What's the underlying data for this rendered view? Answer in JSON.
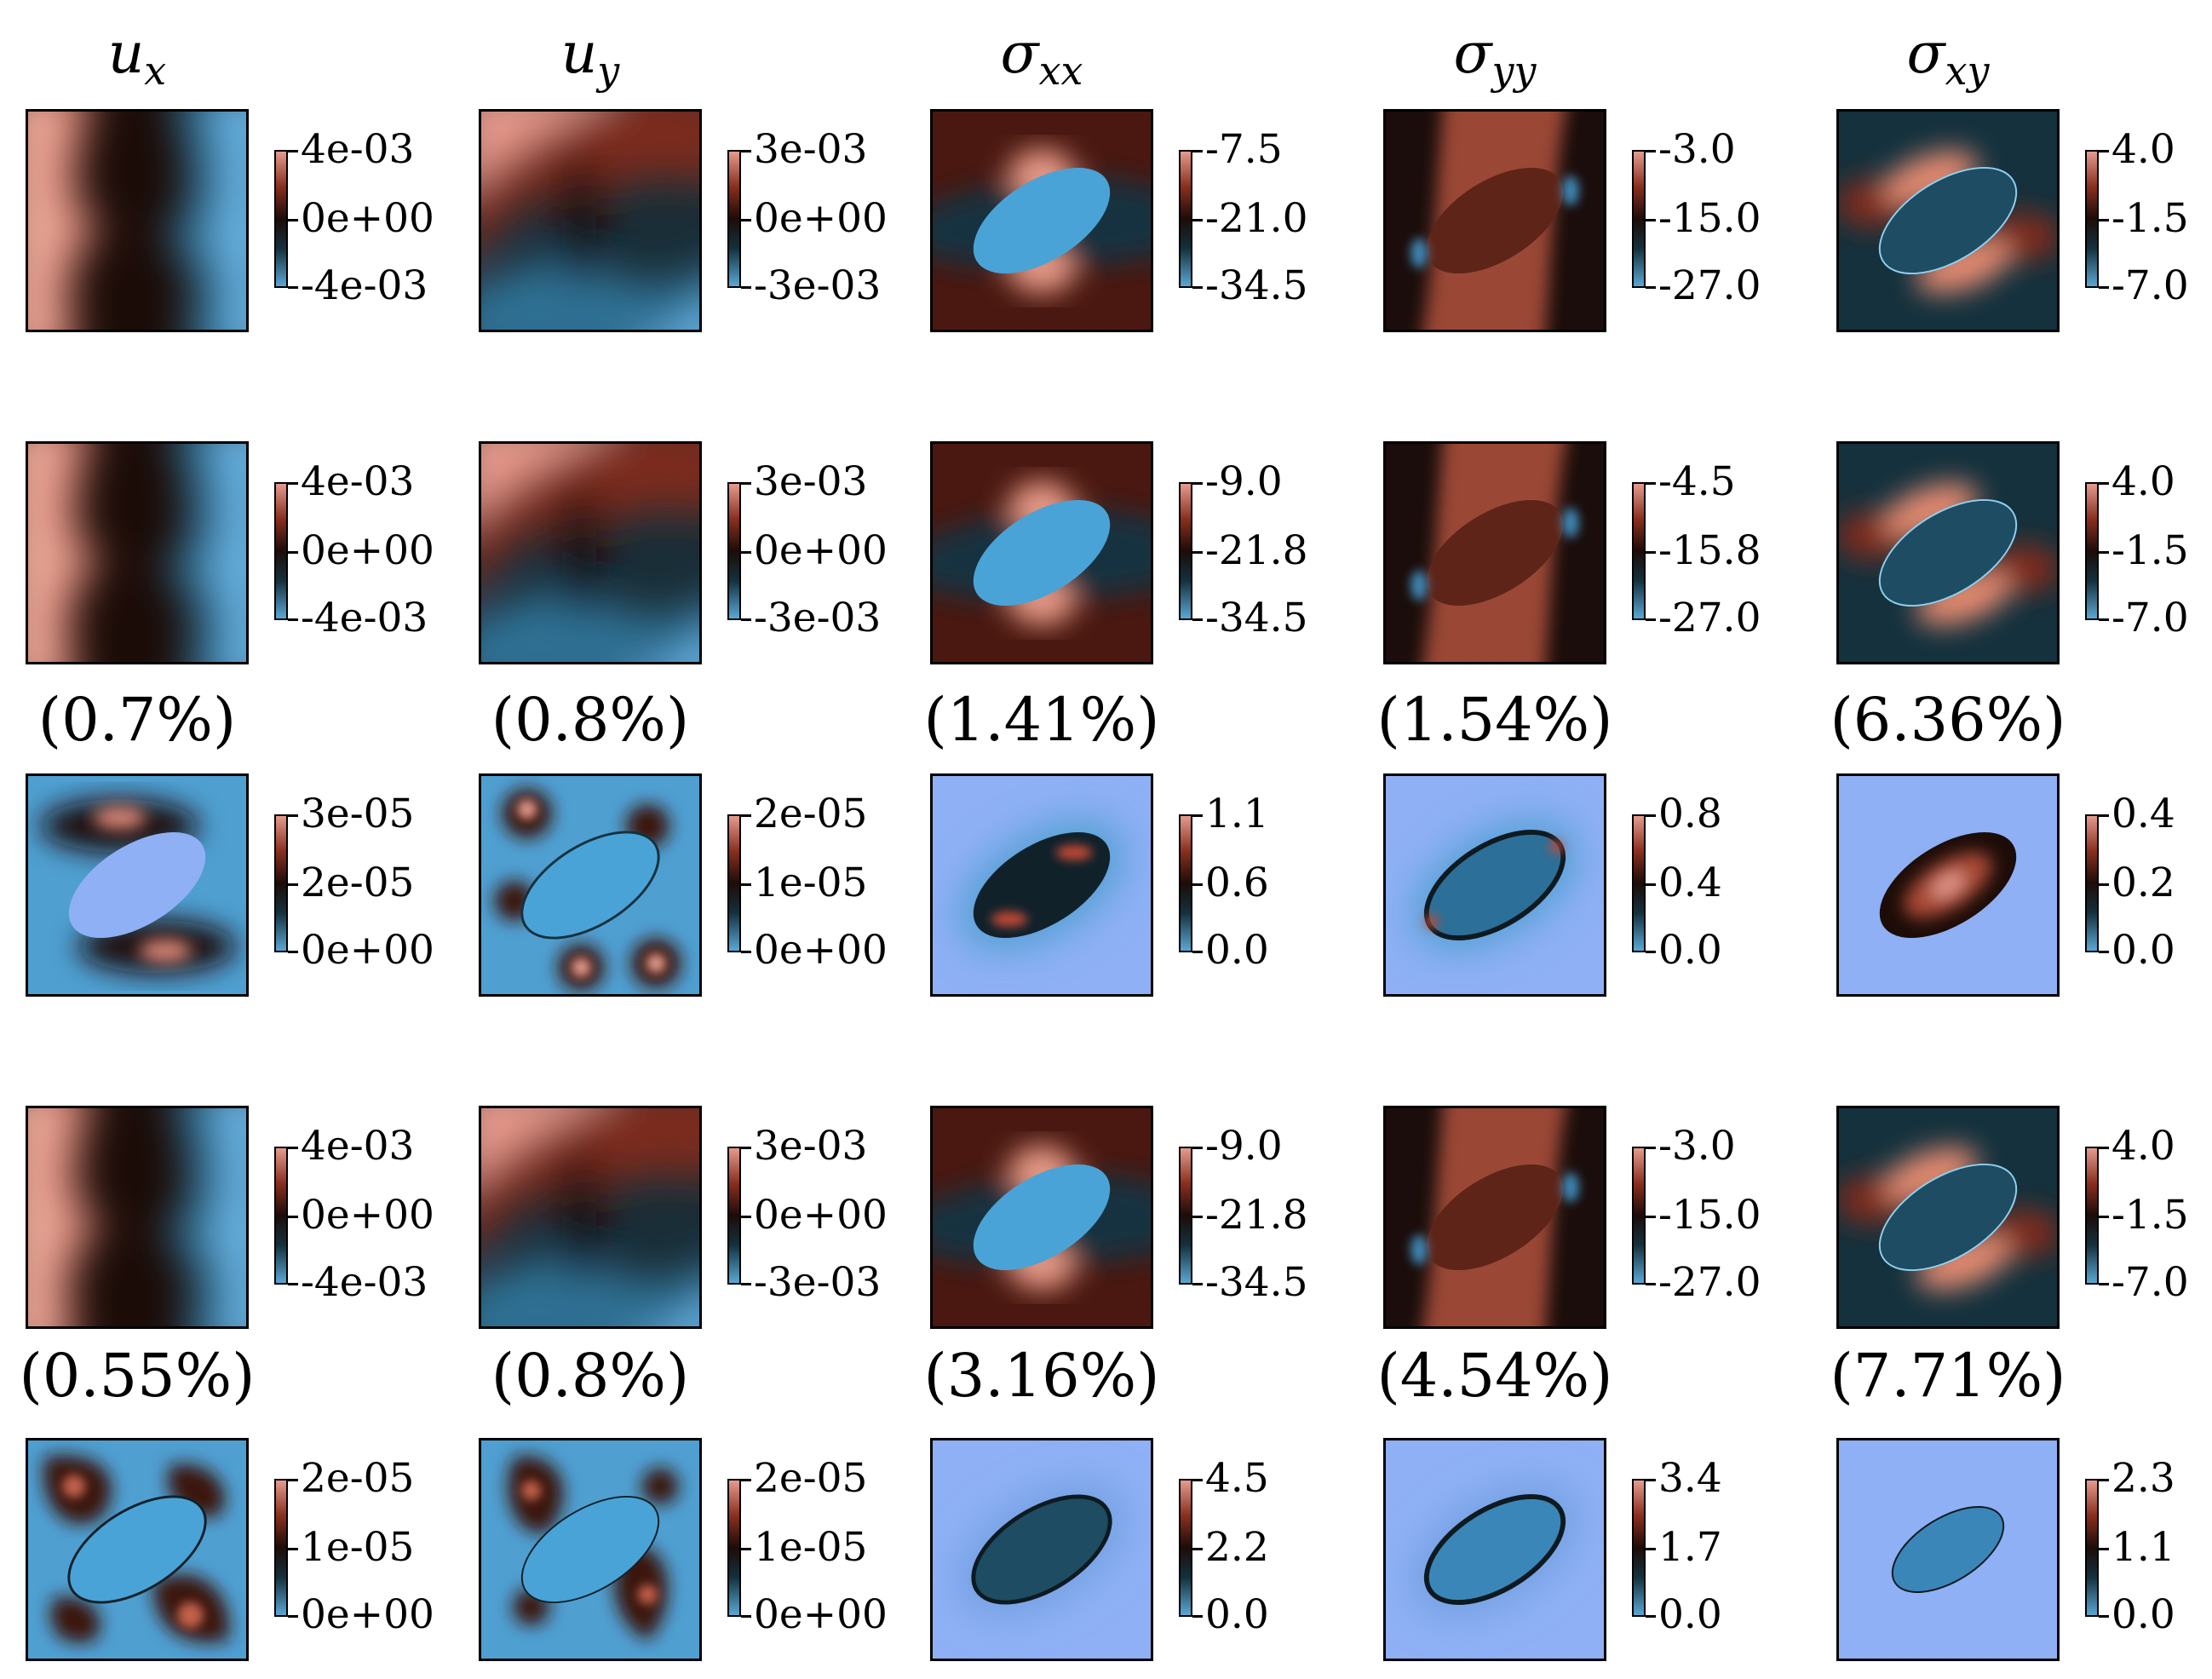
{
  "headers": [
    {
      "symbol": "u",
      "sub": "x"
    },
    {
      "symbol": "u",
      "sub": "y"
    },
    {
      "symbol": "σ",
      "sub": "xx"
    },
    {
      "symbol": "σ",
      "sub": "yy"
    },
    {
      "symbol": "σ",
      "sub": "xy"
    }
  ],
  "colormap": {
    "high": "#e49b8e",
    "mid_high": "#8a2f1f",
    "center": "#1c0c08",
    "mid_low": "#14313d",
    "low": "#5aa7d4",
    "error_background": "#8fb0f5"
  },
  "rows": [
    {
      "kind": "field",
      "ticks": [
        [
          "4e-03",
          "0e+00",
          "-4e-03"
        ],
        [
          "3e-03",
          "0e+00",
          "-3e-03"
        ],
        [
          "-7.5",
          "-21.0",
          "-34.5"
        ],
        [
          "-3.0",
          "-15.0",
          "-27.0"
        ],
        [
          "4.0",
          "-1.5",
          "-7.0"
        ]
      ]
    },
    {
      "kind": "field",
      "ticks": [
        [
          "4e-03",
          "0e+00",
          "-4e-03"
        ],
        [
          "3e-03",
          "0e+00",
          "-3e-03"
        ],
        [
          "-9.0",
          "-21.8",
          "-34.5"
        ],
        [
          "-4.5",
          "-15.8",
          "-27.0"
        ],
        [
          "4.0",
          "-1.5",
          "-7.0"
        ]
      ]
    },
    {
      "kind": "error",
      "percentages": [
        "(0.7%)",
        "(0.8%)",
        "(1.41%)",
        "(1.54%)",
        "(6.36%)"
      ],
      "ticks": [
        [
          "3e-05",
          "2e-05",
          "0e+00"
        ],
        [
          "2e-05",
          "1e-05",
          "0e+00"
        ],
        [
          "1.1",
          "0.6",
          "0.0"
        ],
        [
          "0.8",
          "0.4",
          "0.0"
        ],
        [
          "0.4",
          "0.2",
          "0.0"
        ]
      ]
    },
    {
      "kind": "field",
      "ticks": [
        [
          "4e-03",
          "0e+00",
          "-4e-03"
        ],
        [
          "3e-03",
          "0e+00",
          "-3e-03"
        ],
        [
          "-9.0",
          "-21.8",
          "-34.5"
        ],
        [
          "-3.0",
          "-15.0",
          "-27.0"
        ],
        [
          "4.0",
          "-1.5",
          "-7.0"
        ]
      ]
    },
    {
      "kind": "error",
      "percentages": [
        "(0.55%)",
        "(0.8%)",
        "(3.16%)",
        "(4.54%)",
        "(7.71%)"
      ],
      "ticks": [
        [
          "2e-05",
          "1e-05",
          "0e+00"
        ],
        [
          "2e-05",
          "1e-05",
          "0e+00"
        ],
        [
          "4.5",
          "2.2",
          "0.0"
        ],
        [
          "3.4",
          "1.7",
          "0.0"
        ],
        [
          "2.3",
          "1.1",
          "0.0"
        ]
      ]
    }
  ]
}
